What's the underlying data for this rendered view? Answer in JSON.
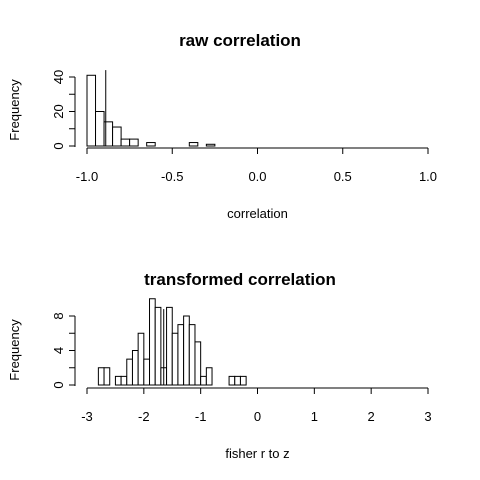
{
  "chart_data": [
    {
      "type": "bar",
      "title": "raw correlation",
      "xlabel": "correlation",
      "ylabel": "Frequency",
      "xlim": [
        -1.0,
        1.0
      ],
      "ylim": [
        0,
        40
      ],
      "x_ticks": [
        "-1.0",
        "-0.5",
        "0.0",
        "0.5",
        "1.0"
      ],
      "y_ticks": [
        "0",
        "20",
        "40"
      ],
      "bin_width": 0.05,
      "bins": [
        {
          "start": -1.0,
          "count": 41
        },
        {
          "start": -0.95,
          "count": 20
        },
        {
          "start": -0.9,
          "count": 14
        },
        {
          "start": -0.85,
          "count": 11
        },
        {
          "start": -0.8,
          "count": 4
        },
        {
          "start": -0.75,
          "count": 4
        },
        {
          "start": -0.7,
          "count": 0
        },
        {
          "start": -0.65,
          "count": 2
        },
        {
          "start": -0.6,
          "count": 0
        },
        {
          "start": -0.55,
          "count": 0
        },
        {
          "start": -0.5,
          "count": 0
        },
        {
          "start": -0.45,
          "count": 0
        },
        {
          "start": -0.4,
          "count": 2
        },
        {
          "start": -0.35,
          "count": 0
        },
        {
          "start": -0.3,
          "count": 1
        }
      ],
      "reference_line": -0.89
    },
    {
      "type": "bar",
      "title": "transformed correlation",
      "xlabel": "fisher r to z",
      "ylabel": "Frequency",
      "xlim": [
        -3,
        3
      ],
      "ylim": [
        0,
        8
      ],
      "x_ticks": [
        "-3",
        "-2",
        "-1",
        "0",
        "1",
        "2",
        "3"
      ],
      "y_ticks": [
        "0",
        "4",
        "8"
      ],
      "bin_width": 0.1,
      "bins": [
        {
          "start": -2.8,
          "count": 2
        },
        {
          "start": -2.7,
          "count": 2
        },
        {
          "start": -2.6,
          "count": 0
        },
        {
          "start": -2.5,
          "count": 1
        },
        {
          "start": -2.4,
          "count": 1
        },
        {
          "start": -2.3,
          "count": 3
        },
        {
          "start": -2.2,
          "count": 4
        },
        {
          "start": -2.1,
          "count": 6
        },
        {
          "start": -2.0,
          "count": 3
        },
        {
          "start": -1.9,
          "count": 10
        },
        {
          "start": -1.8,
          "count": 9
        },
        {
          "start": -1.7,
          "count": 2
        },
        {
          "start": -1.6,
          "count": 9
        },
        {
          "start": -1.5,
          "count": 6
        },
        {
          "start": -1.4,
          "count": 7
        },
        {
          "start": -1.3,
          "count": 8
        },
        {
          "start": -1.2,
          "count": 7
        },
        {
          "start": -1.1,
          "count": 5
        },
        {
          "start": -1.0,
          "count": 1
        },
        {
          "start": -0.9,
          "count": 2
        },
        {
          "start": -0.8,
          "count": 0
        },
        {
          "start": -0.7,
          "count": 0
        },
        {
          "start": -0.6,
          "count": 0
        },
        {
          "start": -0.5,
          "count": 1
        },
        {
          "start": -0.4,
          "count": 1
        },
        {
          "start": -0.3,
          "count": 1
        }
      ],
      "reference_line": -1.65
    }
  ]
}
